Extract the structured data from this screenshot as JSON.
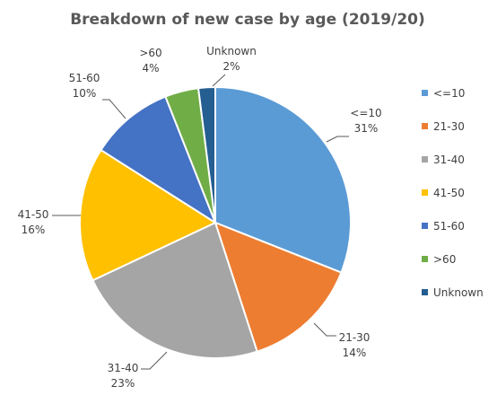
{
  "chart_data": {
    "type": "pie",
    "title": "Breakdown of new case by age (2019/20)",
    "categories": [
      "<=10",
      "21-30",
      "31-40",
      "41-50",
      "51-60",
      ">60",
      "Unknown"
    ],
    "values": [
      31,
      14,
      23,
      16,
      10,
      4,
      2
    ],
    "value_labels": [
      "31%",
      "14%",
      "23%",
      "16%",
      "10%",
      "4%",
      "2%"
    ],
    "colors": [
      "#5b9bd5",
      "#ed7d31",
      "#a5a5a5",
      "#ffc000",
      "#4472c4",
      "#70ad47",
      "#255e91"
    ],
    "legend_position": "right",
    "data_labels": "outside with leader lines"
  }
}
